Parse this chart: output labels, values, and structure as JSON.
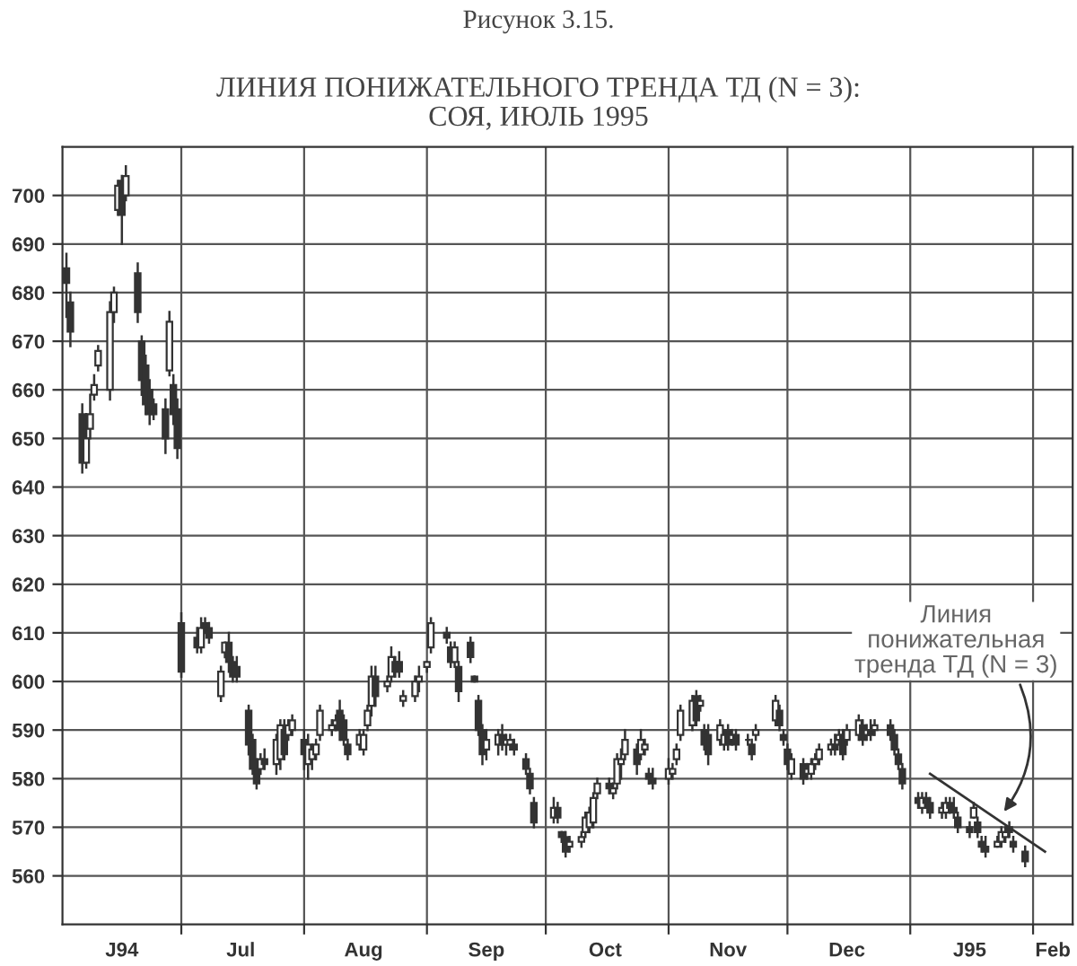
{
  "chart_data": {
    "type": "candlestick",
    "title": "Рисунок 3.15.",
    "subtitle": "ЛИНИЯ ПОНИЖАТЕЛЬНОГО ТРЕНДА ТД (N = 3):\nСОЯ, ИЮЛЬ 1995",
    "color": "#333333",
    "x": [
      "1994-06-02",
      "1994-06-03",
      "1994-06-06",
      "1994-06-07",
      "1994-06-08",
      "1994-06-09",
      "1994-06-10",
      "1994-06-13",
      "1994-06-14",
      "1994-06-15",
      "1994-06-16",
      "1994-06-17",
      "1994-06-20",
      "1994-06-21",
      "1994-06-22",
      "1994-06-23",
      "1994-06-24",
      "1994-06-27",
      "1994-06-28",
      "1994-06-29",
      "1994-06-30",
      "1994-07-01",
      "1994-07-05",
      "1994-07-06",
      "1994-07-07",
      "1994-07-08",
      "1994-07-11",
      "1994-07-12",
      "1994-07-13",
      "1994-07-14",
      "1994-07-15",
      "1994-07-18",
      "1994-07-19",
      "1994-07-20",
      "1994-07-21",
      "1994-07-22",
      "1994-07-25",
      "1994-07-26",
      "1994-07-27",
      "1994-07-28",
      "1994-07-29",
      "1994-08-01",
      "1994-08-02",
      "1994-08-03",
      "1994-08-04",
      "1994-08-05",
      "1994-08-08",
      "1994-08-09",
      "1994-08-10",
      "1994-08-11",
      "1994-08-12",
      "1994-08-15",
      "1994-08-16",
      "1994-08-17",
      "1994-08-18",
      "1994-08-19",
      "1994-08-22",
      "1994-08-23",
      "1994-08-24",
      "1994-08-25",
      "1994-08-26",
      "1994-08-29",
      "1994-08-30",
      "1994-09-01",
      "1994-09-02",
      "1994-09-06",
      "1994-09-07",
      "1994-09-08",
      "1994-09-09",
      "1994-09-12",
      "1994-09-13",
      "1994-09-14",
      "1994-09-15",
      "1994-09-16",
      "1994-09-19",
      "1994-09-20",
      "1994-09-21",
      "1994-09-22",
      "1994-09-23",
      "1994-09-26",
      "1994-09-27",
      "1994-09-28",
      "1994-10-03",
      "1994-10-04",
      "1994-10-05",
      "1994-10-06",
      "1994-10-07",
      "1994-10-10",
      "1994-10-11",
      "1994-10-12",
      "1994-10-13",
      "1994-10-14",
      "1994-10-17",
      "1994-10-18",
      "1994-10-19",
      "1994-10-20",
      "1994-10-21",
      "1994-10-24",
      "1994-10-25",
      "1994-10-26",
      "1994-10-27",
      "1994-10-28",
      "1994-11-01",
      "1994-11-02",
      "1994-11-03",
      "1994-11-04",
      "1994-11-07",
      "1994-11-08",
      "1994-11-09",
      "1994-11-10",
      "1994-11-11",
      "1994-11-14",
      "1994-11-15",
      "1994-11-16",
      "1994-11-17",
      "1994-11-18",
      "1994-11-21",
      "1994-11-22",
      "1994-11-23",
      "1994-11-28",
      "1994-11-29",
      "1994-11-30",
      "1994-12-01",
      "1994-12-02",
      "1994-12-05",
      "1994-12-06",
      "1994-12-07",
      "1994-12-08",
      "1994-12-09",
      "1994-12-12",
      "1994-12-13",
      "1994-12-14",
      "1994-12-15",
      "1994-12-16",
      "1994-12-19",
      "1994-12-20",
      "1994-12-21",
      "1994-12-22",
      "1994-12-23",
      "1994-12-27",
      "1994-12-28",
      "1994-12-29",
      "1994-12-30",
      "1995-01-03",
      "1995-01-04",
      "1995-01-05",
      "1995-01-06",
      "1995-01-09",
      "1995-01-10",
      "1995-01-11",
      "1995-01-12",
      "1995-01-13",
      "1995-01-16",
      "1995-01-17",
      "1995-01-18",
      "1995-01-19",
      "1995-01-20",
      "1995-01-23",
      "1995-01-24",
      "1995-01-25",
      "1995-01-26",
      "1995-01-27",
      "1995-01-30"
    ],
    "ohlc": [
      [
        685,
        688,
        675,
        682
      ],
      [
        678,
        680,
        669,
        672
      ],
      [
        655,
        657,
        643,
        645
      ],
      [
        645,
        655,
        644,
        650
      ],
      [
        652,
        659,
        650,
        655
      ],
      [
        659,
        663,
        658,
        661
      ],
      [
        665,
        669,
        664,
        668
      ],
      [
        660,
        678,
        658,
        676
      ],
      [
        676,
        681,
        674,
        680
      ],
      [
        697,
        703,
        696,
        702
      ],
      [
        703,
        704,
        690,
        696
      ],
      [
        700,
        706,
        699,
        704
      ],
      [
        684,
        686,
        674,
        676
      ],
      [
        670,
        671,
        659,
        662
      ],
      [
        665,
        667,
        655,
        657
      ],
      [
        660,
        662,
        653,
        655
      ],
      [
        657,
        658,
        654,
        655
      ],
      [
        656,
        658,
        647,
        650
      ],
      [
        664,
        676,
        663,
        674
      ],
      [
        661,
        663,
        653,
        655
      ],
      [
        656,
        658,
        646,
        648
      ],
      [
        612,
        614,
        601,
        602
      ],
      [
        609,
        611,
        606,
        607
      ],
      [
        607,
        613,
        606,
        611
      ],
      [
        612,
        613,
        610,
        611
      ],
      [
        611,
        612,
        608,
        609
      ],
      [
        597,
        603,
        596,
        602
      ],
      [
        606,
        608,
        605,
        608
      ],
      [
        608,
        610,
        602,
        604
      ],
      [
        604,
        605,
        600,
        601
      ],
      [
        603,
        605,
        600,
        601
      ],
      [
        594,
        595,
        585,
        587
      ],
      [
        588,
        589,
        581,
        582
      ],
      [
        582,
        584,
        578,
        579
      ],
      [
        582,
        585,
        581,
        584
      ],
      [
        584,
        586,
        582,
        583
      ],
      [
        583,
        589,
        581,
        588
      ],
      [
        584,
        592,
        582,
        591
      ],
      [
        590,
        592,
        584,
        585
      ],
      [
        589,
        592,
        588,
        591
      ],
      [
        590,
        593,
        589,
        592
      ],
      [
        588,
        590,
        582,
        585
      ],
      [
        583,
        589,
        580,
        587
      ],
      [
        584,
        587,
        582,
        586
      ],
      [
        585,
        588,
        584,
        587
      ],
      [
        589,
        595,
        588,
        594
      ],
      [
        590,
        592,
        589,
        591
      ],
      [
        591,
        593,
        590,
        592
      ],
      [
        594,
        596,
        588,
        590
      ],
      [
        592,
        593,
        587,
        588
      ],
      [
        587,
        588,
        584,
        585
      ],
      [
        587,
        590,
        586,
        589
      ],
      [
        586,
        590,
        585,
        589
      ],
      [
        591,
        595,
        590,
        594
      ],
      [
        595,
        603,
        593,
        601
      ],
      [
        601,
        603,
        595,
        597
      ],
      [
        599,
        601,
        598,
        600
      ],
      [
        601,
        607,
        600,
        605
      ],
      [
        604,
        605,
        601,
        602
      ],
      [
        604,
        606,
        601,
        602
      ],
      [
        596,
        598,
        595,
        597
      ],
      [
        597,
        601,
        596,
        600
      ],
      [
        600,
        603,
        598,
        601
      ],
      [
        603,
        604,
        602,
        604
      ],
      [
        607,
        613,
        606,
        612
      ],
      [
        610,
        611,
        608,
        609
      ],
      [
        607,
        608,
        603,
        604
      ],
      [
        604,
        608,
        603,
        607
      ],
      [
        603,
        604,
        596,
        598
      ],
      [
        608,
        609,
        604,
        605
      ],
      [
        601,
        601,
        600,
        600
      ],
      [
        596,
        597,
        589,
        590
      ],
      [
        590,
        591,
        583,
        585
      ],
      [
        586,
        590,
        584,
        588
      ],
      [
        587,
        590,
        585,
        589
      ],
      [
        589,
        591,
        586,
        587
      ],
      [
        587,
        589,
        585,
        588
      ],
      [
        587,
        589,
        586,
        588
      ],
      [
        587,
        588,
        585,
        586
      ],
      [
        584,
        585,
        581,
        582
      ],
      [
        581,
        582,
        577,
        578
      ],
      [
        575,
        576,
        570,
        571
      ],
      [
        572,
        576,
        571,
        574
      ],
      [
        574,
        575,
        571,
        572
      ],
      [
        569,
        569,
        567,
        568
      ],
      [
        568,
        569,
        564,
        565
      ],
      [
        566,
        568,
        565,
        567
      ],
      [
        567,
        569,
        566,
        568
      ],
      [
        569,
        573,
        568,
        572
      ],
      [
        570,
        574,
        569,
        573
      ],
      [
        571,
        577,
        570,
        576
      ],
      [
        577,
        580,
        576,
        579
      ],
      [
        579,
        580,
        577,
        578
      ],
      [
        577,
        579,
        576,
        578
      ],
      [
        579,
        585,
        578,
        584
      ],
      [
        583,
        586,
        580,
        584
      ],
      [
        585,
        590,
        584,
        588
      ],
      [
        586,
        587,
        581,
        583
      ],
      [
        585,
        590,
        584,
        588
      ],
      [
        586,
        588,
        585,
        587
      ],
      [
        581,
        582,
        579,
        580
      ],
      [
        580,
        582,
        578,
        579
      ],
      [
        580,
        584,
        579,
        582
      ],
      [
        581,
        583,
        580,
        582
      ],
      [
        584,
        587,
        583,
        586
      ],
      [
        589,
        595,
        588,
        594
      ],
      [
        591,
        597,
        590,
        596
      ],
      [
        597,
        598,
        591,
        592
      ],
      [
        595,
        597,
        594,
        596
      ],
      [
        590,
        591,
        586,
        587
      ],
      [
        589,
        591,
        583,
        585
      ],
      [
        588,
        592,
        587,
        591
      ],
      [
        587,
        590,
        586,
        589
      ],
      [
        590,
        591,
        586,
        587
      ],
      [
        588,
        590,
        587,
        589
      ],
      [
        589,
        590,
        586,
        587
      ],
      [
        588,
        589,
        587,
        588
      ],
      [
        587,
        588,
        584,
        585
      ],
      [
        589,
        591,
        588,
        590
      ],
      [
        592,
        597,
        591,
        596
      ],
      [
        594,
        595,
        590,
        591
      ],
      [
        589,
        590,
        587,
        588
      ],
      [
        586,
        587,
        582,
        583
      ],
      [
        581,
        585,
        580,
        584
      ],
      [
        583,
        584,
        579,
        580
      ],
      [
        581,
        583,
        580,
        582
      ],
      [
        581,
        584,
        580,
        583
      ],
      [
        583,
        585,
        582,
        584
      ],
      [
        584,
        587,
        583,
        586
      ],
      [
        586,
        588,
        585,
        587
      ],
      [
        587,
        589,
        585,
        586
      ],
      [
        588,
        590,
        587,
        589
      ],
      [
        589,
        590,
        584,
        585
      ],
      [
        588,
        591,
        587,
        590
      ],
      [
        589,
        593,
        588,
        592
      ],
      [
        591,
        592,
        587,
        588
      ],
      [
        589,
        591,
        588,
        590
      ],
      [
        590,
        592,
        588,
        589
      ],
      [
        590,
        592,
        589,
        591
      ],
      [
        591,
        592,
        588,
        589
      ],
      [
        589,
        590,
        585,
        586
      ],
      [
        585,
        586,
        582,
        583
      ],
      [
        582,
        583,
        578,
        579
      ],
      [
        576,
        577,
        574,
        575
      ],
      [
        574,
        577,
        573,
        576
      ],
      [
        576,
        577,
        574,
        575
      ],
      [
        575,
        576,
        572,
        573
      ],
      [
        573,
        575,
        572,
        574
      ],
      [
        573,
        576,
        572,
        575
      ],
      [
        575,
        576,
        573,
        574
      ],
      [
        574,
        576,
        572,
        573
      ],
      [
        572,
        573,
        569,
        570
      ],
      [
        570,
        571,
        568,
        569
      ],
      [
        572,
        575,
        572,
        574
      ],
      [
        571,
        572,
        568,
        569
      ],
      [
        567,
        568,
        565,
        566
      ],
      [
        566,
        568,
        564,
        565
      ],
      [
        566,
        568,
        566,
        567
      ],
      [
        567,
        570,
        566,
        569
      ],
      [
        568,
        570,
        567,
        569
      ],
      [
        570,
        571,
        568,
        569
      ],
      [
        567,
        568,
        565,
        566
      ],
      [
        565,
        566,
        562,
        563
      ]
    ],
    "series": [
      {
        "type": "line",
        "x": [
          "1995-01-06",
          "1995-02-04"
        ],
        "values": [
          581,
          565
        ],
        "color": "#333333"
      }
    ],
    "annotations": [
      "Линия\nпонижательная\nтренда ТД (N = 3)"
    ],
    "xlim": [
      "1994-06-01",
      "1995-02-11"
    ],
    "xticks": [
      {
        "value": "1994-06-16",
        "label": "J94"
      },
      {
        "value": "1994-07-01",
        "label": null
      },
      {
        "value": "1994-07-16",
        "label": "Jul"
      },
      {
        "value": "1994-08-01",
        "label": null
      },
      {
        "value": "1994-08-16",
        "label": "Aug"
      },
      {
        "value": "1994-09-01",
        "label": null
      },
      {
        "value": "1994-09-16",
        "label": "Sep"
      },
      {
        "value": "1994-10-01",
        "label": null
      },
      {
        "value": "1994-10-16",
        "label": "Oct"
      },
      {
        "value": "1994-11-01",
        "label": null
      },
      {
        "value": "1994-11-16",
        "label": "Nov"
      },
      {
        "value": "1994-12-01",
        "label": null
      },
      {
        "value": "1994-12-16",
        "label": "Dec"
      },
      {
        "value": "1995-01-01",
        "label": null
      },
      {
        "value": "1995-01-16",
        "label": "J95"
      },
      {
        "value": "1995-02-01",
        "label": null
      },
      {
        "value": "1995-02-06",
        "label": "Feb"
      }
    ],
    "ylim": [
      550,
      710
    ],
    "yticks": [
      560,
      570,
      580,
      590,
      600,
      610,
      620,
      630,
      640,
      650,
      660,
      670,
      680,
      690,
      700
    ],
    "grid": true
  }
}
